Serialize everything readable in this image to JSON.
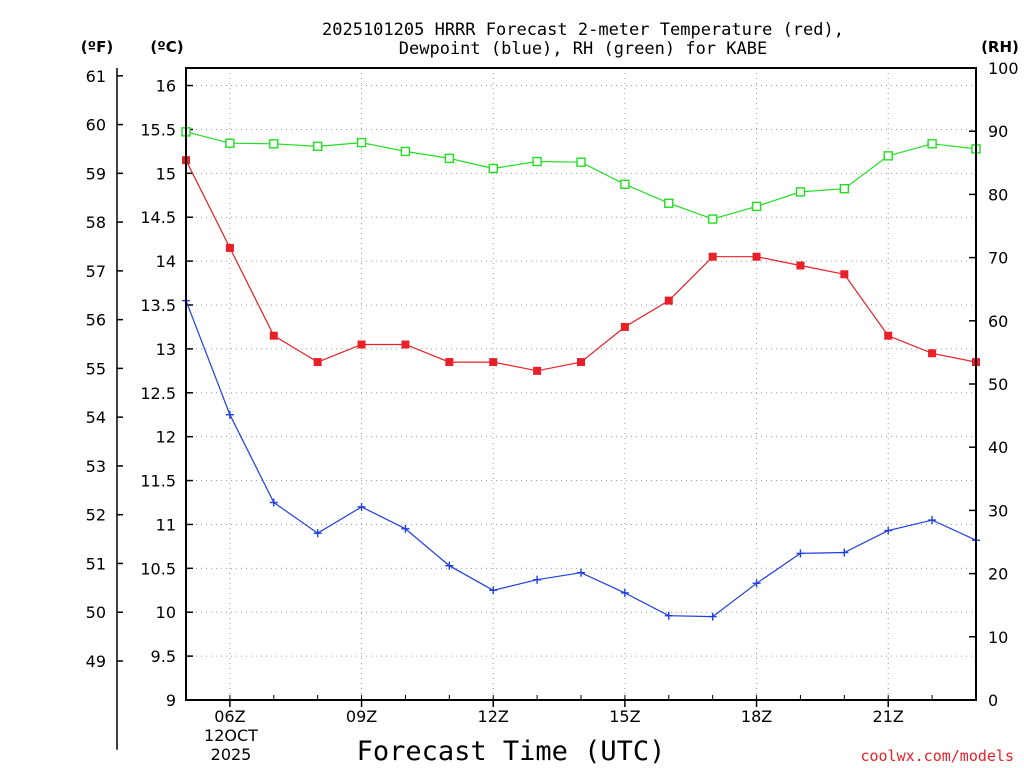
{
  "chart_data": {
    "type": "line",
    "title_line1": "2025101205 HRRR Forecast 2-meter Temperature (red),",
    "title_line2": "Dewpoint (blue), RH (green) for KABE",
    "xlabel": "Forecast Time (UTC)",
    "date_label_day": "12OCT",
    "date_label_year": "2025",
    "left_unit_f": "(ºF)",
    "left_unit_c": "(ºC)",
    "right_unit": "(RH)",
    "credit": "coolwx.com/models",
    "x_hours": [
      5,
      6,
      7,
      8,
      9,
      10,
      11,
      12,
      13,
      14,
      15,
      16,
      17,
      18,
      19,
      20,
      21,
      22,
      23
    ],
    "x_ticks": [
      {
        "hour": 6,
        "label": "06Z"
      },
      {
        "hour": 9,
        "label": "09Z"
      },
      {
        "hour": 12,
        "label": "12Z"
      },
      {
        "hour": 15,
        "label": "15Z"
      },
      {
        "hour": 18,
        "label": "18Z"
      },
      {
        "hour": 21,
        "label": "21Z"
      }
    ],
    "xlim": [
      5,
      23
    ],
    "celsius_axis": {
      "min": 9,
      "max": 16.2,
      "ticks": [
        "9",
        "9.5",
        "10",
        "10.5",
        "11",
        "11.5",
        "12",
        "12.5",
        "13",
        "13.5",
        "14",
        "14.5",
        "15",
        "15.5",
        "16"
      ]
    },
    "fahrenheit_axis": {
      "ticks": [
        "49",
        "50",
        "51",
        "52",
        "53",
        "54",
        "55",
        "56",
        "57",
        "58",
        "59",
        "60",
        "61"
      ]
    },
    "rh_axis": {
      "min": 0,
      "max": 100,
      "ticks": [
        "0",
        "10",
        "20",
        "30",
        "40",
        "50",
        "60",
        "70",
        "80",
        "90",
        "100"
      ]
    },
    "series": [
      {
        "name": "Temperature",
        "unit": "C",
        "color": "#e8202a",
        "marker": "filled-square",
        "values": [
          15.15,
          14.15,
          13.15,
          12.85,
          13.05,
          13.05,
          12.85,
          12.85,
          12.75,
          12.85,
          13.25,
          13.55,
          14.05,
          14.05,
          13.95,
          13.85,
          13.15,
          12.95,
          12.85
        ]
      },
      {
        "name": "Dewpoint",
        "unit": "C",
        "color": "#1f3fe0",
        "marker": "plus",
        "values": [
          13.55,
          12.25,
          11.25,
          10.9,
          11.2,
          10.95,
          10.53,
          10.25,
          10.37,
          10.45,
          10.22,
          9.96,
          9.95,
          10.33,
          10.67,
          10.68,
          10.93,
          11.05,
          10.82
        ]
      },
      {
        "name": "RH",
        "unit": "%",
        "color": "#22dd22",
        "marker": "open-square",
        "values": [
          89.9,
          88.1,
          88.0,
          87.6,
          88.2,
          86.8,
          85.7,
          84.1,
          85.2,
          85.1,
          81.6,
          78.6,
          76.1,
          78.1,
          80.4,
          80.9,
          86.1,
          88.0,
          87.2
        ]
      }
    ]
  }
}
